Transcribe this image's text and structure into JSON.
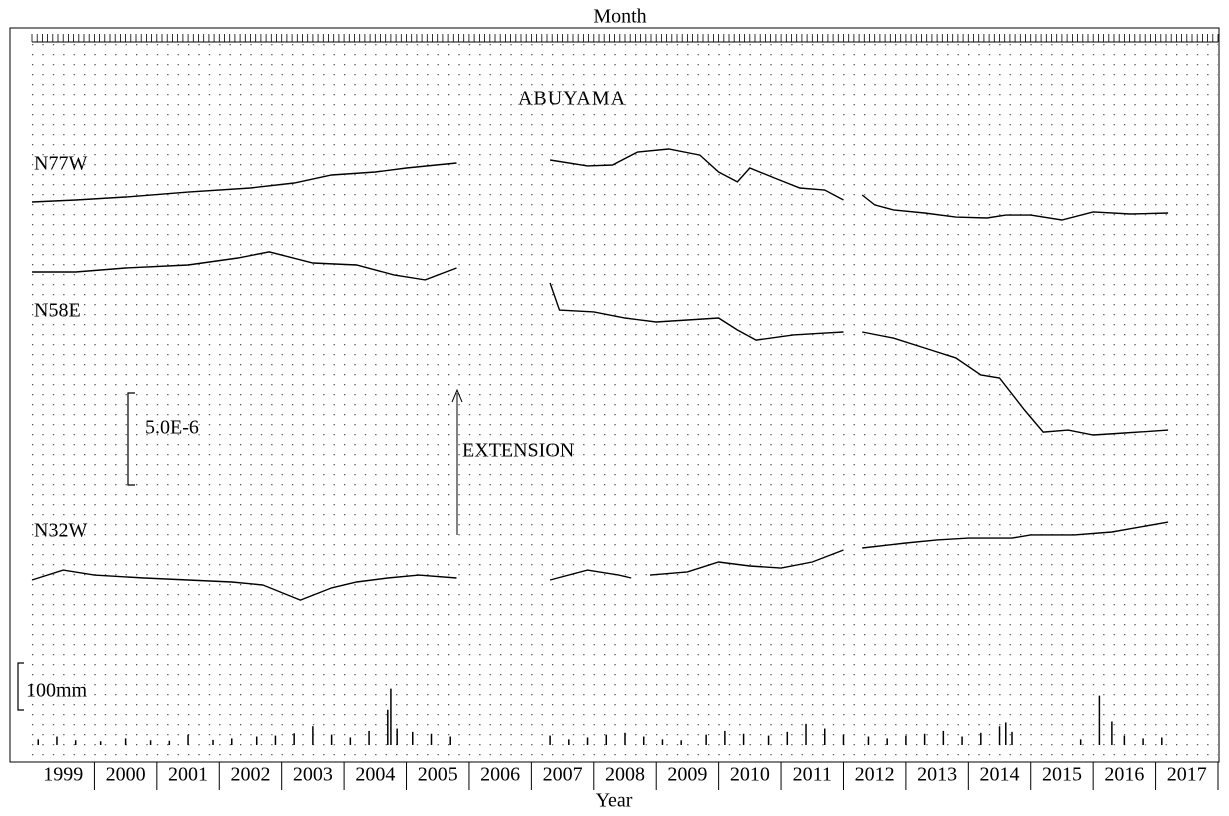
{
  "chart_data": {
    "type": "line",
    "top_label": "Month",
    "title": "ABUYAMA",
    "xlabel": "Year",
    "annotation": "EXTENSION",
    "xlim": [
      1999,
      2018
    ],
    "categories": [
      "1999",
      "2000",
      "2001",
      "2002",
      "2003",
      "2004",
      "2005",
      "2006",
      "2007",
      "2008",
      "2009",
      "2010",
      "2011",
      "2012",
      "2013",
      "2014",
      "2015",
      "2016",
      "2017"
    ],
    "scale_bar": {
      "value": 5e-06,
      "label": "5.0E-6"
    },
    "grid": true,
    "series": [
      {
        "name": "N77W",
        "color": "#000000",
        "x": [
          1999.0,
          1999.7,
          2000.5,
          2001.5,
          2002.5,
          2003.2,
          2003.8,
          2004.5,
          2005.0,
          2005.8,
          2006.5,
          2007.3,
          2007.9,
          2008.3,
          2008.7,
          2009.2,
          2009.7,
          2010.0,
          2010.3,
          2010.5,
          2010.9,
          2011.3,
          2011.7,
          2012.0,
          2012.15,
          2012.3,
          2012.5,
          2012.8,
          2013.3,
          2013.8,
          2014.3,
          2014.6,
          2015.0,
          2015.5,
          2016.0,
          2016.6,
          2017.2
        ],
        "values": [
          0,
          1.1e-07,
          2.7e-07,
          5.4e-07,
          7.6e-07,
          1.03e-06,
          1.47e-06,
          1.63e-06,
          1.85e-06,
          2.12e-06,
          null,
          2.28e-06,
          1.96e-06,
          2.01e-06,
          2.72e-06,
          2.88e-06,
          2.55e-06,
          1.63e-06,
          1.09e-06,
          1.85e-06,
          1.3e-06,
          7.6e-07,
          6.5e-07,
          1.1e-07,
          null,
          3.8e-07,
          -1.6e-07,
          -4.3e-07,
          -6e-07,
          -8.2e-07,
          -8.7e-07,
          -7.1e-07,
          -7.1e-07,
          -9.8e-07,
          -5.4e-07,
          -6.5e-07,
          -6e-07
        ]
      },
      {
        "name": "N58E",
        "color": "#000000",
        "x": [
          1999.0,
          1999.7,
          2000.5,
          2001.5,
          2002.3,
          2002.8,
          2003.5,
          2004.2,
          2004.8,
          2005.3,
          2005.8,
          2006.5,
          2007.3,
          2007.45,
          2008.0,
          2008.5,
          2009.0,
          2009.5,
          2010.0,
          2010.3,
          2010.6,
          2011.2,
          2011.7,
          2012.0,
          2012.15,
          2012.3,
          2012.8,
          2013.3,
          2013.8,
          2014.2,
          2014.5,
          2014.9,
          2015.2,
          2015.6,
          2016.0,
          2016.5,
          2017.2
        ],
        "values": [
          0,
          0,
          2.2e-07,
          3.8e-07,
          7.6e-07,
          1.09e-06,
          4.9e-07,
          3.8e-07,
          -1.6e-07,
          -4.3e-07,
          2.2e-07,
          null,
          -6e-07,
          -2.07e-06,
          -2.17e-06,
          -2.5e-06,
          -2.72e-06,
          -2.61e-06,
          -2.5e-06,
          -3.15e-06,
          -3.7e-06,
          -3.42e-06,
          -3.32e-06,
          -3.26e-06,
          null,
          -3.26e-06,
          -3.59e-06,
          -4.13e-06,
          -4.67e-06,
          -5.6e-06,
          -5.76e-06,
          -7.5e-06,
          -8.7e-06,
          -8.59e-06,
          -8.86e-06,
          -8.75e-06,
          -8.59e-06
        ]
      },
      {
        "name": "N32W",
        "color": "#000000",
        "x": [
          1999.0,
          1999.5,
          2000.0,
          2000.8,
          2001.5,
          2002.2,
          2002.7,
          2003.3,
          2003.8,
          2004.2,
          2004.7,
          2005.2,
          2005.8,
          2006.5,
          2007.3,
          2007.9,
          2008.4,
          2008.6,
          2008.7,
          2008.9,
          2009.5,
          2010.0,
          2010.5,
          2011.0,
          2011.5,
          2012.0,
          2012.15,
          2012.3,
          2013.0,
          2013.5,
          2014.0,
          2014.7,
          2015.0,
          2015.7,
          2016.3,
          2017.2
        ],
        "values": [
          -1.1e-07,
          4.3e-07,
          1.6e-07,
          0,
          -1.1e-07,
          -2.2e-07,
          -3.8e-07,
          -1.2e-06,
          -5.4e-07,
          -2.2e-07,
          0,
          1.6e-07,
          0,
          null,
          -1.1e-07,
          4.3e-07,
          1.6e-07,
          0,
          null,
          1.6e-07,
          3.3e-07,
          8.7e-07,
          6.5e-07,
          5.4e-07,
          8.7e-07,
          1.52e-06,
          null,
          1.63e-06,
          1.9e-06,
          2.07e-06,
          2.17e-06,
          2.17e-06,
          2.34e-06,
          2.34e-06,
          2.5e-06,
          3.04e-06
        ]
      }
    ],
    "rainfall": {
      "color": "#000000",
      "scale_bar": {
        "value": 100,
        "label": "100mm"
      },
      "x": [
        1999.1,
        1999.4,
        1999.7,
        2000.1,
        2000.5,
        2000.9,
        2001.2,
        2001.5,
        2001.9,
        2002.2,
        2002.6,
        2002.9,
        2003.2,
        2003.5,
        2003.8,
        2004.1,
        2004.4,
        2004.7,
        2004.75,
        2004.85,
        2005.1,
        2005.4,
        2005.7,
        2007.3,
        2007.6,
        2007.9,
        2008.2,
        2008.5,
        2008.8,
        2009.1,
        2009.4,
        2009.8,
        2010.1,
        2010.4,
        2010.8,
        2011.1,
        2011.4,
        2011.7,
        2012.0,
        2012.4,
        2012.7,
        2013.0,
        2013.3,
        2013.6,
        2013.9,
        2014.2,
        2014.5,
        2014.6,
        2014.7,
        2015.8,
        2016.1,
        2016.3,
        2016.5,
        2016.8,
        2017.1
      ],
      "values": [
        12,
        18,
        10,
        8,
        14,
        10,
        9,
        22,
        11,
        14,
        18,
        20,
        25,
        40,
        22,
        16,
        30,
        75,
        120,
        35,
        28,
        24,
        18,
        20,
        12,
        16,
        22,
        26,
        18,
        12,
        10,
        22,
        30,
        24,
        20,
        28,
        45,
        35,
        22,
        18,
        14,
        20,
        24,
        30,
        18,
        26,
        40,
        48,
        28,
        12,
        105,
        50,
        20,
        14,
        16
      ]
    }
  }
}
